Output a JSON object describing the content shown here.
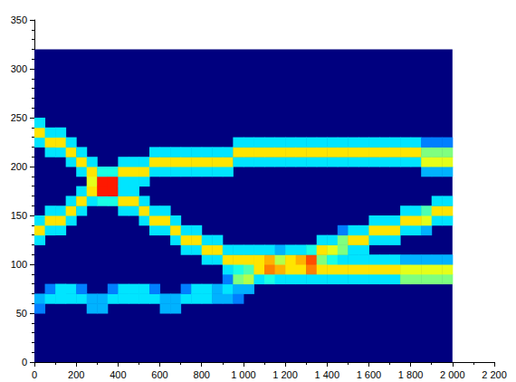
{
  "chart_data": {
    "type": "heatmap",
    "xlim": [
      0,
      2200
    ],
    "xticks": [
      0,
      200,
      400,
      600,
      800,
      {
        "value": 1000,
        "label": "1 000"
      },
      {
        "value": 1200,
        "label": "1 200"
      },
      {
        "value": 1400,
        "label": "1 400"
      },
      {
        "value": 1600,
        "label": "1 600"
      },
      {
        "value": 1800,
        "label": "1 800"
      },
      {
        "value": 2000,
        "label": "2 000"
      },
      {
        "value": 2200,
        "label": "2 200"
      }
    ],
    "ylim": [
      0,
      350
    ],
    "yticks": [
      0,
      50,
      100,
      150,
      200,
      250,
      300,
      350
    ],
    "grid": false,
    "extent": {
      "x": [
        0,
        2000
      ],
      "y": [
        0,
        320
      ]
    },
    "cell_width": 50,
    "cell_height": 10,
    "color_range": [
      0,
      1
    ],
    "cells": [
      [
        25,
        55,
        0.25
      ],
      [
        25,
        65,
        0.3
      ],
      [
        25,
        125,
        0.35
      ],
      [
        25,
        135,
        0.65
      ],
      [
        25,
        145,
        0.35
      ],
      [
        25,
        225,
        0.35
      ],
      [
        25,
        235,
        0.65
      ],
      [
        25,
        245,
        0.35
      ],
      [
        75,
        65,
        0.35
      ],
      [
        75,
        75,
        0.25
      ],
      [
        75,
        135,
        0.35
      ],
      [
        75,
        145,
        0.65
      ],
      [
        75,
        155,
        0.35
      ],
      [
        75,
        215,
        0.35
      ],
      [
        75,
        225,
        0.65
      ],
      [
        75,
        235,
        0.35
      ],
      [
        125,
        65,
        0.35
      ],
      [
        125,
        75,
        0.35
      ],
      [
        125,
        135,
        0.35
      ],
      [
        125,
        145,
        0.65
      ],
      [
        125,
        155,
        0.35
      ],
      [
        125,
        215,
        0.35
      ],
      [
        125,
        225,
        0.65
      ],
      [
        125,
        235,
        0.35
      ],
      [
        175,
        65,
        0.35
      ],
      [
        175,
        75,
        0.35
      ],
      [
        175,
        145,
        0.35
      ],
      [
        175,
        155,
        0.65
      ],
      [
        175,
        165,
        0.35
      ],
      [
        175,
        205,
        0.35
      ],
      [
        175,
        215,
        0.65
      ],
      [
        175,
        225,
        0.35
      ],
      [
        225,
        65,
        0.35
      ],
      [
        225,
        75,
        0.25
      ],
      [
        225,
        155,
        0.35
      ],
      [
        225,
        165,
        0.65
      ],
      [
        225,
        175,
        0.35
      ],
      [
        225,
        195,
        0.35
      ],
      [
        225,
        205,
        0.65
      ],
      [
        225,
        215,
        0.35
      ],
      [
        275,
        55,
        0.3
      ],
      [
        275,
        65,
        0.3
      ],
      [
        275,
        165,
        0.35
      ],
      [
        275,
        175,
        0.65
      ],
      [
        275,
        185,
        0.6
      ],
      [
        275,
        195,
        0.65
      ],
      [
        275,
        205,
        0.35
      ],
      [
        325,
        55,
        0.3
      ],
      [
        325,
        65,
        0.3
      ],
      [
        325,
        165,
        0.4
      ],
      [
        325,
        175,
        0.85
      ],
      [
        325,
        185,
        0.85
      ],
      [
        325,
        195,
        0.4
      ],
      [
        375,
        65,
        0.35
      ],
      [
        375,
        75,
        0.25
      ],
      [
        375,
        165,
        0.4
      ],
      [
        375,
        175,
        0.85
      ],
      [
        375,
        185,
        0.85
      ],
      [
        375,
        195,
        0.4
      ],
      [
        425,
        65,
        0.35
      ],
      [
        425,
        75,
        0.35
      ],
      [
        425,
        155,
        0.35
      ],
      [
        425,
        165,
        0.65
      ],
      [
        425,
        175,
        0.35
      ],
      [
        425,
        185,
        0.35
      ],
      [
        425,
        195,
        0.65
      ],
      [
        425,
        205,
        0.35
      ],
      [
        475,
        65,
        0.35
      ],
      [
        475,
        75,
        0.35
      ],
      [
        475,
        155,
        0.35
      ],
      [
        475,
        165,
        0.65
      ],
      [
        475,
        175,
        0.35
      ],
      [
        475,
        185,
        0.35
      ],
      [
        475,
        195,
        0.65
      ],
      [
        475,
        205,
        0.35
      ],
      [
        525,
        65,
        0.35
      ],
      [
        525,
        75,
        0.35
      ],
      [
        525,
        145,
        0.35
      ],
      [
        525,
        155,
        0.65
      ],
      [
        525,
        165,
        0.35
      ],
      [
        525,
        185,
        0.35
      ],
      [
        525,
        195,
        0.65
      ],
      [
        525,
        205,
        0.35
      ],
      [
        575,
        65,
        0.35
      ],
      [
        575,
        75,
        0.25
      ],
      [
        575,
        135,
        0.35
      ],
      [
        575,
        145,
        0.65
      ],
      [
        575,
        155,
        0.35
      ],
      [
        575,
        195,
        0.35
      ],
      [
        575,
        205,
        0.65
      ],
      [
        575,
        215,
        0.35
      ],
      [
        625,
        55,
        0.3
      ],
      [
        625,
        65,
        0.3
      ],
      [
        625,
        135,
        0.35
      ],
      [
        625,
        145,
        0.65
      ],
      [
        625,
        155,
        0.35
      ],
      [
        625,
        195,
        0.35
      ],
      [
        625,
        205,
        0.65
      ],
      [
        625,
        215,
        0.35
      ],
      [
        675,
        55,
        0.3
      ],
      [
        675,
        65,
        0.3
      ],
      [
        675,
        125,
        0.35
      ],
      [
        675,
        135,
        0.65
      ],
      [
        675,
        145,
        0.35
      ],
      [
        675,
        195,
        0.35
      ],
      [
        675,
        205,
        0.65
      ],
      [
        675,
        215,
        0.35
      ],
      [
        725,
        65,
        0.35
      ],
      [
        725,
        75,
        0.25
      ],
      [
        725,
        115,
        0.35
      ],
      [
        725,
        125,
        0.65
      ],
      [
        725,
        135,
        0.35
      ],
      [
        725,
        195,
        0.35
      ],
      [
        725,
        205,
        0.65
      ],
      [
        725,
        215,
        0.35
      ],
      [
        775,
        65,
        0.35
      ],
      [
        775,
        75,
        0.35
      ],
      [
        775,
        115,
        0.35
      ],
      [
        775,
        125,
        0.65
      ],
      [
        775,
        135,
        0.35
      ],
      [
        775,
        195,
        0.35
      ],
      [
        775,
        205,
        0.65
      ],
      [
        775,
        215,
        0.35
      ],
      [
        825,
        65,
        0.35
      ],
      [
        825,
        75,
        0.35
      ],
      [
        825,
        105,
        0.35
      ],
      [
        825,
        115,
        0.65
      ],
      [
        825,
        125,
        0.35
      ],
      [
        825,
        195,
        0.35
      ],
      [
        825,
        205,
        0.65
      ],
      [
        825,
        215,
        0.35
      ],
      [
        875,
        65,
        0.3
      ],
      [
        875,
        75,
        0.3
      ],
      [
        875,
        105,
        0.35
      ],
      [
        875,
        115,
        0.65
      ],
      [
        875,
        125,
        0.35
      ],
      [
        875,
        195,
        0.35
      ],
      [
        875,
        205,
        0.65
      ],
      [
        875,
        215,
        0.35
      ],
      [
        925,
        65,
        0.3
      ],
      [
        925,
        75,
        0.35
      ],
      [
        925,
        85,
        0.25
      ],
      [
        925,
        95,
        0.35
      ],
      [
        925,
        105,
        0.65
      ],
      [
        925,
        115,
        0.35
      ],
      [
        925,
        195,
        0.35
      ],
      [
        925,
        205,
        0.65
      ],
      [
        925,
        215,
        0.35
      ],
      [
        975,
        65,
        0.25
      ],
      [
        975,
        75,
        0.3
      ],
      [
        975,
        85,
        0.5
      ],
      [
        975,
        95,
        0.4
      ],
      [
        975,
        105,
        0.65
      ],
      [
        975,
        115,
        0.35
      ],
      [
        975,
        205,
        0.35
      ],
      [
        975,
        215,
        0.65
      ],
      [
        975,
        225,
        0.35
      ],
      [
        1025,
        75,
        0.3
      ],
      [
        1025,
        85,
        0.55
      ],
      [
        1025,
        95,
        0.45
      ],
      [
        1025,
        105,
        0.65
      ],
      [
        1025,
        115,
        0.35
      ],
      [
        1025,
        205,
        0.35
      ],
      [
        1025,
        215,
        0.65
      ],
      [
        1025,
        225,
        0.35
      ],
      [
        1075,
        85,
        0.35
      ],
      [
        1075,
        95,
        0.65
      ],
      [
        1075,
        105,
        0.65
      ],
      [
        1075,
        115,
        0.35
      ],
      [
        1075,
        205,
        0.35
      ],
      [
        1075,
        215,
        0.65
      ],
      [
        1075,
        225,
        0.35
      ],
      [
        1125,
        85,
        0.4
      ],
      [
        1125,
        95,
        0.75
      ],
      [
        1125,
        105,
        0.7
      ],
      [
        1125,
        115,
        0.35
      ],
      [
        1125,
        205,
        0.35
      ],
      [
        1125,
        215,
        0.65
      ],
      [
        1125,
        225,
        0.35
      ],
      [
        1175,
        85,
        0.35
      ],
      [
        1175,
        95,
        0.7
      ],
      [
        1175,
        105,
        0.55
      ],
      [
        1175,
        115,
        0.3
      ],
      [
        1175,
        205,
        0.35
      ],
      [
        1175,
        215,
        0.65
      ],
      [
        1175,
        225,
        0.35
      ],
      [
        1225,
        85,
        0.35
      ],
      [
        1225,
        95,
        0.65
      ],
      [
        1225,
        105,
        0.65
      ],
      [
        1225,
        115,
        0.35
      ],
      [
        1225,
        205,
        0.35
      ],
      [
        1225,
        215,
        0.65
      ],
      [
        1225,
        225,
        0.35
      ],
      [
        1275,
        85,
        0.35
      ],
      [
        1275,
        95,
        0.65
      ],
      [
        1275,
        105,
        0.7
      ],
      [
        1275,
        115,
        0.35
      ],
      [
        1275,
        205,
        0.35
      ],
      [
        1275,
        215,
        0.65
      ],
      [
        1275,
        225,
        0.35
      ],
      [
        1325,
        85,
        0.35
      ],
      [
        1325,
        95,
        0.75
      ],
      [
        1325,
        105,
        0.8
      ],
      [
        1325,
        115,
        0.4
      ],
      [
        1325,
        205,
        0.35
      ],
      [
        1325,
        215,
        0.65
      ],
      [
        1325,
        225,
        0.35
      ],
      [
        1375,
        85,
        0.35
      ],
      [
        1375,
        95,
        0.65
      ],
      [
        1375,
        105,
        0.5
      ],
      [
        1375,
        115,
        0.65
      ],
      [
        1375,
        125,
        0.35
      ],
      [
        1375,
        205,
        0.35
      ],
      [
        1375,
        215,
        0.65
      ],
      [
        1375,
        225,
        0.35
      ],
      [
        1425,
        85,
        0.35
      ],
      [
        1425,
        95,
        0.65
      ],
      [
        1425,
        105,
        0.4
      ],
      [
        1425,
        115,
        0.6
      ],
      [
        1425,
        125,
        0.35
      ],
      [
        1425,
        205,
        0.35
      ],
      [
        1425,
        215,
        0.65
      ],
      [
        1425,
        225,
        0.35
      ],
      [
        1475,
        85,
        0.35
      ],
      [
        1475,
        95,
        0.65
      ],
      [
        1475,
        105,
        0.35
      ],
      [
        1475,
        115,
        0.5
      ],
      [
        1475,
        125,
        0.5
      ],
      [
        1475,
        135,
        0.25
      ],
      [
        1475,
        205,
        0.35
      ],
      [
        1475,
        215,
        0.65
      ],
      [
        1475,
        225,
        0.35
      ],
      [
        1525,
        85,
        0.35
      ],
      [
        1525,
        95,
        0.65
      ],
      [
        1525,
        105,
        0.35
      ],
      [
        1525,
        115,
        0.35
      ],
      [
        1525,
        125,
        0.65
      ],
      [
        1525,
        135,
        0.35
      ],
      [
        1525,
        205,
        0.35
      ],
      [
        1525,
        215,
        0.65
      ],
      [
        1525,
        225,
        0.35
      ],
      [
        1575,
        85,
        0.35
      ],
      [
        1575,
        95,
        0.65
      ],
      [
        1575,
        105,
        0.35
      ],
      [
        1575,
        115,
        0.35
      ],
      [
        1575,
        125,
        0.65
      ],
      [
        1575,
        135,
        0.35
      ],
      [
        1575,
        205,
        0.35
      ],
      [
        1575,
        215,
        0.65
      ],
      [
        1575,
        225,
        0.35
      ],
      [
        1625,
        85,
        0.35
      ],
      [
        1625,
        95,
        0.65
      ],
      [
        1625,
        105,
        0.35
      ],
      [
        1625,
        125,
        0.35
      ],
      [
        1625,
        135,
        0.65
      ],
      [
        1625,
        145,
        0.35
      ],
      [
        1625,
        205,
        0.35
      ],
      [
        1625,
        215,
        0.65
      ],
      [
        1625,
        225,
        0.35
      ],
      [
        1675,
        85,
        0.35
      ],
      [
        1675,
        95,
        0.65
      ],
      [
        1675,
        105,
        0.35
      ],
      [
        1675,
        125,
        0.35
      ],
      [
        1675,
        135,
        0.65
      ],
      [
        1675,
        145,
        0.35
      ],
      [
        1675,
        205,
        0.35
      ],
      [
        1675,
        215,
        0.65
      ],
      [
        1675,
        225,
        0.35
      ],
      [
        1725,
        85,
        0.35
      ],
      [
        1725,
        95,
        0.65
      ],
      [
        1725,
        105,
        0.35
      ],
      [
        1725,
        125,
        0.35
      ],
      [
        1725,
        135,
        0.65
      ],
      [
        1725,
        145,
        0.35
      ],
      [
        1725,
        205,
        0.35
      ],
      [
        1725,
        215,
        0.65
      ],
      [
        1725,
        225,
        0.35
      ],
      [
        1775,
        85,
        0.5
      ],
      [
        1775,
        95,
        0.6
      ],
      [
        1775,
        105,
        0.3
      ],
      [
        1775,
        135,
        0.35
      ],
      [
        1775,
        145,
        0.65
      ],
      [
        1775,
        155,
        0.35
      ],
      [
        1775,
        205,
        0.35
      ],
      [
        1775,
        215,
        0.65
      ],
      [
        1775,
        225,
        0.35
      ],
      [
        1825,
        85,
        0.5
      ],
      [
        1825,
        95,
        0.6
      ],
      [
        1825,
        105,
        0.3
      ],
      [
        1825,
        135,
        0.35
      ],
      [
        1825,
        145,
        0.65
      ],
      [
        1825,
        155,
        0.35
      ],
      [
        1825,
        205,
        0.35
      ],
      [
        1825,
        215,
        0.65
      ],
      [
        1825,
        225,
        0.35
      ],
      [
        1875,
        85,
        0.5
      ],
      [
        1875,
        95,
        0.6
      ],
      [
        1875,
        105,
        0.3
      ],
      [
        1875,
        135,
        0.3
      ],
      [
        1875,
        145,
        0.6
      ],
      [
        1875,
        155,
        0.45
      ],
      [
        1875,
        195,
        0.3
      ],
      [
        1875,
        205,
        0.6
      ],
      [
        1875,
        215,
        0.5
      ],
      [
        1875,
        225,
        0.25
      ],
      [
        1925,
        85,
        0.5
      ],
      [
        1925,
        95,
        0.6
      ],
      [
        1925,
        105,
        0.3
      ],
      [
        1925,
        145,
        0.35
      ],
      [
        1925,
        155,
        0.65
      ],
      [
        1925,
        165,
        0.35
      ],
      [
        1925,
        195,
        0.3
      ],
      [
        1925,
        205,
        0.6
      ],
      [
        1925,
        215,
        0.5
      ],
      [
        1925,
        225,
        0.25
      ],
      [
        1975,
        85,
        0.5
      ],
      [
        1975,
        95,
        0.6
      ],
      [
        1975,
        105,
        0.3
      ],
      [
        1975,
        145,
        0.35
      ],
      [
        1975,
        155,
        0.65
      ],
      [
        1975,
        165,
        0.35
      ],
      [
        1975,
        195,
        0.3
      ],
      [
        1975,
        205,
        0.6
      ],
      [
        1975,
        215,
        0.5
      ],
      [
        1975,
        225,
        0.25
      ]
    ]
  }
}
